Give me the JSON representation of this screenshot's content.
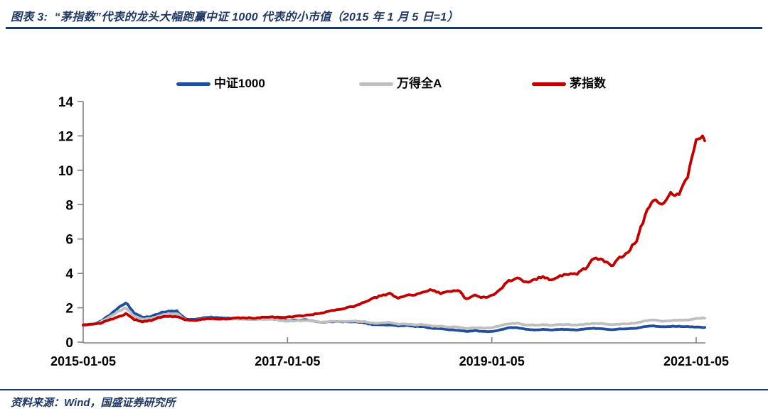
{
  "header": {
    "title": "图表 3:  “茅指数”代表的龙头大幅跑赢中证 1000 代表的小市值（2015 年 1 月 5 日=1）"
  },
  "footer": {
    "source": "资料来源：Wind，国盛证券研究所"
  },
  "colors": {
    "title_navy": "#1F3864",
    "axis_gray": "#808080",
    "csi1000_blue": "#1F4E9F",
    "wind_all_a_gray": "#BFBFBF",
    "mao_index_red": "#C00000"
  },
  "chart_data": {
    "type": "line",
    "title": "“茅指数”代表的龙头大幅跑赢中证1000代表的小市值",
    "baseline": "2015-01-05=1",
    "x_start": "2015-01",
    "x_end": "2021-02",
    "x_unit": "month",
    "x_tick_labels": [
      "2015-01-05",
      "2017-01-05",
      "2019-01-05",
      "2021-01-05"
    ],
    "x_tick_years": [
      0,
      2,
      4,
      6
    ],
    "ylim": [
      0,
      14
    ],
    "y_ticks": [
      0,
      2,
      4,
      6,
      8,
      10,
      12,
      14
    ],
    "grid": false,
    "legend_position": "top",
    "series": [
      {
        "name": "中证1000",
        "color": "#1F4E9F",
        "monthly_values": [
          1.0,
          1.06,
          1.2,
          1.55,
          1.95,
          2.3,
          1.7,
          1.45,
          1.5,
          1.7,
          1.8,
          1.8,
          1.35,
          1.3,
          1.4,
          1.45,
          1.4,
          1.42,
          1.4,
          1.35,
          1.33,
          1.36,
          1.38,
          1.3,
          1.25,
          1.28,
          1.3,
          1.25,
          1.15,
          1.2,
          1.18,
          1.2,
          1.18,
          1.12,
          1.02,
          1.0,
          1.02,
          0.95,
          0.98,
          0.92,
          0.9,
          0.8,
          0.78,
          0.72,
          0.7,
          0.62,
          0.67,
          0.62,
          0.62,
          0.72,
          0.84,
          0.85,
          0.74,
          0.72,
          0.74,
          0.7,
          0.75,
          0.74,
          0.72,
          0.77,
          0.8,
          0.78,
          0.72,
          0.77,
          0.78,
          0.82,
          0.92,
          0.94,
          0.9,
          0.92,
          0.92,
          0.9,
          0.88,
          0.85
        ]
      },
      {
        "name": "万得全A",
        "color": "#BFBFBF",
        "monthly_values": [
          1.0,
          1.05,
          1.16,
          1.45,
          1.75,
          2.0,
          1.52,
          1.33,
          1.38,
          1.55,
          1.65,
          1.66,
          1.3,
          1.25,
          1.33,
          1.37,
          1.33,
          1.35,
          1.35,
          1.33,
          1.3,
          1.33,
          1.35,
          1.28,
          1.22,
          1.25,
          1.27,
          1.22,
          1.15,
          1.2,
          1.2,
          1.22,
          1.22,
          1.2,
          1.12,
          1.1,
          1.15,
          1.05,
          1.06,
          1.02,
          1.02,
          0.93,
          0.92,
          0.88,
          0.88,
          0.8,
          0.84,
          0.82,
          0.85,
          0.95,
          1.08,
          1.1,
          1.0,
          1.0,
          1.02,
          0.98,
          1.03,
          1.02,
          1.0,
          1.05,
          1.08,
          1.07,
          1.0,
          1.05,
          1.07,
          1.12,
          1.25,
          1.28,
          1.23,
          1.26,
          1.28,
          1.3,
          1.38,
          1.42
        ]
      },
      {
        "name": "茅指数",
        "color": "#C00000",
        "monthly_values": [
          1.0,
          1.04,
          1.1,
          1.28,
          1.45,
          1.65,
          1.32,
          1.2,
          1.27,
          1.45,
          1.5,
          1.48,
          1.3,
          1.26,
          1.33,
          1.37,
          1.34,
          1.36,
          1.4,
          1.42,
          1.4,
          1.44,
          1.47,
          1.44,
          1.45,
          1.5,
          1.55,
          1.62,
          1.7,
          1.82,
          1.9,
          2.0,
          2.12,
          2.3,
          2.55,
          2.7,
          2.85,
          2.55,
          2.75,
          2.7,
          2.95,
          3.05,
          2.85,
          2.95,
          3.05,
          2.5,
          2.72,
          2.6,
          2.7,
          3.1,
          3.55,
          3.75,
          3.5,
          3.65,
          3.8,
          3.6,
          3.85,
          3.95,
          4.0,
          4.3,
          4.95,
          4.8,
          4.4,
          4.9,
          5.3,
          5.9,
          7.4,
          8.2,
          8.0,
          8.7,
          8.5,
          9.6,
          11.8,
          11.9
        ]
      }
    ]
  }
}
